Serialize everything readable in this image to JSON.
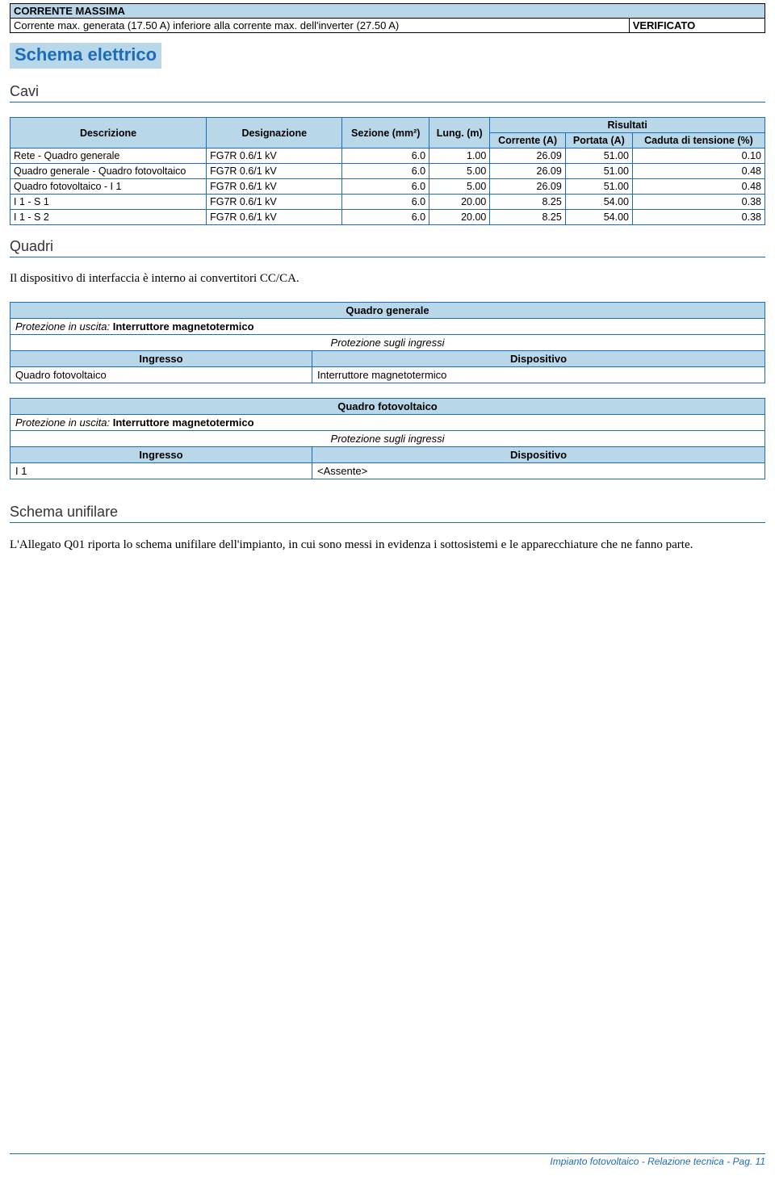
{
  "top": {
    "header": "CORRENTE MASSIMA",
    "line": "Corrente max. generata (17.50 A) inferiore alla corrente max. dell'inverter (27.50 A)",
    "status": "VERIFICATO"
  },
  "section_title": "Schema elettrico",
  "cavi": {
    "heading": "Cavi",
    "risultati": "Risultati",
    "cols": {
      "desc": "Descrizione",
      "desig": "Designazione",
      "sezione": "Sezione (mm²)",
      "lung": "Lung. (m)",
      "corrente": "Corrente (A)",
      "portata": "Portata (A)",
      "caduta": "Caduta di tensione (%)"
    },
    "rows": [
      {
        "d": "Rete - Quadro generale",
        "g": "FG7R 0.6/1 kV",
        "s": "6.0",
        "l": "1.00",
        "c": "26.09",
        "p": "51.00",
        "t": "0.10"
      },
      {
        "d": "Quadro generale - Quadro fotovoltaico",
        "g": "FG7R 0.6/1 kV",
        "s": "6.0",
        "l": "5.00",
        "c": "26.09",
        "p": "51.00",
        "t": "0.48"
      },
      {
        "d": "Quadro fotovoltaico - I 1",
        "g": "FG7R 0.6/1 kV",
        "s": "6.0",
        "l": "5.00",
        "c": "26.09",
        "p": "51.00",
        "t": "0.48"
      },
      {
        "d": "I 1 - S 1",
        "g": "FG7R 0.6/1 kV",
        "s": "6.0",
        "l": "20.00",
        "c": "8.25",
        "p": "54.00",
        "t": "0.38"
      },
      {
        "d": "I 1 - S 2",
        "g": "FG7R 0.6/1 kV",
        "s": "6.0",
        "l": "20.00",
        "c": "8.25",
        "p": "54.00",
        "t": "0.38"
      }
    ]
  },
  "quadri": {
    "heading": "Quadri",
    "para": "Il dispositivo di interfaccia è interno ai convertitori CC/CA.",
    "p1": {
      "title": "Quadro generale",
      "prot_label": "Protezione in uscita:",
      "prot_value": "Interruttore magnetotermico",
      "sub": "Protezione sugli ingressi",
      "col1": "Ingresso",
      "col2": "Dispositivo",
      "r_ing": "Quadro fotovoltaico",
      "r_dev": "Interruttore magnetotermico"
    },
    "p2": {
      "title": "Quadro fotovoltaico",
      "prot_label": "Protezione in uscita:",
      "prot_value": "Interruttore magnetotermico",
      "sub": "Protezione sugli ingressi",
      "col1": "Ingresso",
      "col2": "Dispositivo",
      "r_ing": "I 1",
      "r_dev": "<Assente>"
    }
  },
  "unifilare": {
    "heading": "Schema unifilare",
    "para": "L'Allegato Q01 riporta lo schema unifilare dell'impianto, in cui sono messi in evidenza i sottosistemi e le apparecchiature che ne fanno parte."
  },
  "footer": "Impianto fotovoltaico - Relazione tecnica - Pag. 11"
}
